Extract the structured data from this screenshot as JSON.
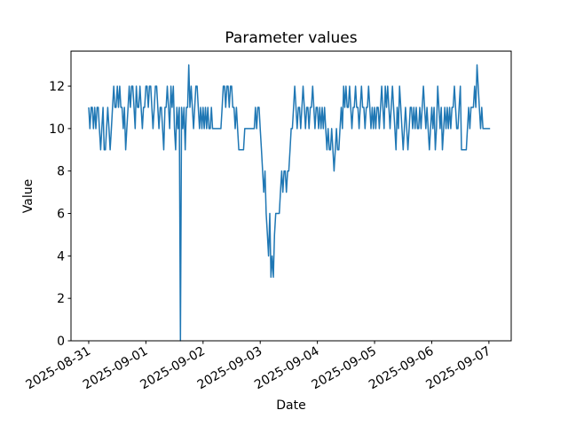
{
  "chart_data": {
    "type": "line",
    "title": "Parameter values",
    "xlabel": "Date",
    "ylabel": "Value",
    "line_color": "#1f77b4",
    "background_color": "#ffffff",
    "axis_color": "#000000",
    "legend": "none",
    "grid": "off",
    "x_tick_labels": [
      "2025-08-31",
      "2025-09-01",
      "2025-09-02",
      "2025-09-03",
      "2025-09-04",
      "2025-09-05",
      "2025-09-06",
      "2025-09-07"
    ],
    "x_tick_rotation_degrees": 30,
    "y_ticks": [
      0,
      2,
      4,
      6,
      8,
      10,
      12
    ],
    "ylim": [
      0,
      13.65
    ],
    "xlim_days": [
      -0.31,
      7.39
    ],
    "x_start": "2025-08-31",
    "sample_interval_days": 0.0208333,
    "values": [
      11,
      10,
      11,
      11,
      10,
      11,
      10,
      11,
      11,
      10,
      9,
      10,
      11,
      9,
      9,
      10,
      11,
      10,
      9,
      10,
      11,
      12,
      11,
      11,
      12,
      11,
      12,
      11,
      11,
      10,
      11,
      9,
      10,
      11,
      12,
      11,
      12,
      12,
      11,
      10,
      12,
      11,
      11,
      12,
      11,
      10,
      11,
      11,
      12,
      12,
      11,
      12,
      12,
      11,
      10,
      11,
      12,
      12,
      11,
      10,
      11,
      11,
      10,
      9,
      11,
      11,
      12,
      11,
      10,
      12,
      11,
      12,
      10,
      9,
      11,
      10,
      11,
      0,
      11,
      10,
      11,
      9,
      11,
      11,
      13,
      11,
      12,
      11,
      10,
      11,
      12,
      12,
      11,
      10,
      11,
      10,
      11,
      10,
      11,
      10,
      11,
      10,
      10,
      11,
      10,
      10,
      10,
      10,
      10,
      10,
      10,
      10,
      11,
      12,
      12,
      11,
      12,
      12,
      11,
      12,
      12,
      11,
      11,
      10,
      11,
      10,
      9,
      9,
      9,
      9,
      9,
      10,
      10,
      10,
      10,
      10,
      10,
      10,
      10,
      10,
      11,
      10,
      11,
      11,
      10,
      9,
      8,
      7,
      8,
      6,
      5,
      4,
      6,
      3,
      4,
      3,
      5,
      6,
      6,
      6,
      6,
      7,
      8,
      7,
      8,
      8,
      7,
      8,
      8,
      9,
      10,
      10,
      11,
      12,
      11,
      10,
      11,
      11,
      10,
      11,
      12,
      11,
      10,
      11,
      11,
      10,
      11,
      11,
      12,
      11,
      10,
      11,
      11,
      10,
      11,
      10,
      11,
      10,
      11,
      10,
      9,
      10,
      9,
      9,
      10,
      9,
      8,
      9,
      10,
      9,
      9,
      10,
      11,
      10,
      12,
      11,
      12,
      11,
      11,
      12,
      11,
      10,
      11,
      11,
      12,
      11,
      11,
      10,
      11,
      12,
      11,
      11,
      10,
      11,
      11,
      12,
      11,
      10,
      11,
      10,
      11,
      10,
      11,
      11,
      10,
      11,
      12,
      11,
      10,
      12,
      11,
      12,
      11,
      10,
      11,
      12,
      11,
      10,
      9,
      11,
      10,
      12,
      11,
      10,
      9,
      10,
      11,
      10,
      9,
      10,
      11,
      11,
      10,
      11,
      10,
      11,
      10,
      10,
      11,
      10,
      11,
      12,
      11,
      10,
      11,
      10,
      9,
      10,
      11,
      10,
      11,
      9,
      10,
      12,
      11,
      10,
      11,
      9,
      10,
      11,
      10,
      11,
      10,
      11,
      10,
      11,
      11,
      12,
      11,
      10,
      10,
      11,
      12,
      9,
      9,
      9,
      9,
      9,
      10,
      11,
      10,
      11,
      11,
      11,
      12,
      11,
      13,
      12,
      11,
      10,
      11,
      10,
      10,
      10,
      10,
      10,
      10,
      10
    ]
  }
}
